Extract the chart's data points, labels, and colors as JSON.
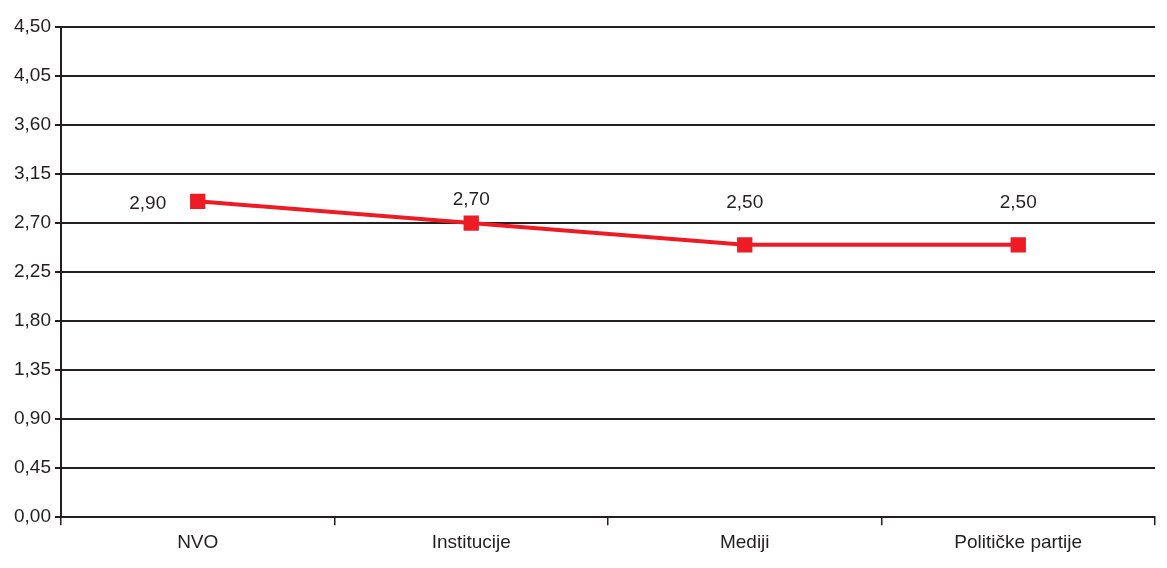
{
  "chart_data": {
    "type": "line",
    "categories": [
      "NVO",
      "Institucije",
      "Mediji",
      "Političke partije"
    ],
    "series": [
      {
        "color": "#ed1c24",
        "values": [
          2.9,
          2.7,
          2.5,
          2.5
        ],
        "value_labels": [
          "2,90",
          "2,70",
          "2,50",
          "2,50"
        ]
      }
    ],
    "ylim": [
      0,
      4.5
    ],
    "yticks": [
      {
        "value": 0,
        "label": "0,00"
      },
      {
        "value": 0.45,
        "label": "0,45"
      },
      {
        "value": 0.9,
        "label": "0,90"
      },
      {
        "value": 1.35,
        "label": "1,35"
      },
      {
        "value": 1.8,
        "label": "1,80"
      },
      {
        "value": 2.25,
        "label": "2,25"
      },
      {
        "value": 2.7,
        "label": "2,70"
      },
      {
        "value": 3.15,
        "label": "3,15"
      },
      {
        "value": 3.6,
        "label": "3,60"
      },
      {
        "value": 4.05,
        "label": "4,05"
      },
      {
        "value": 4.5,
        "label": "4,50"
      }
    ],
    "grid": "y",
    "legend": false,
    "marker": "square",
    "line_style": "solid"
  }
}
